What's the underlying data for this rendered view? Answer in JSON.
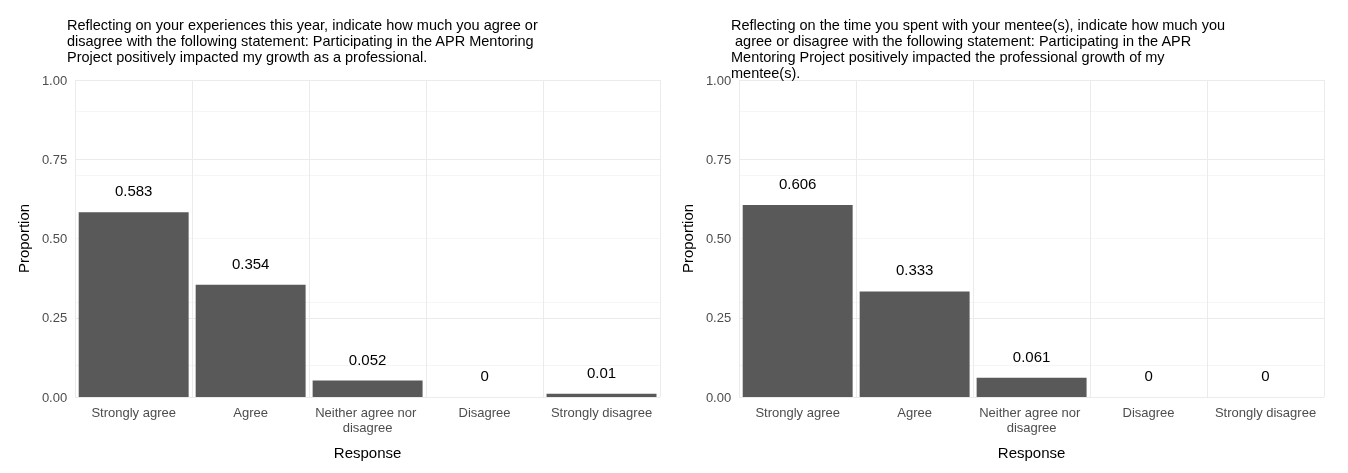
{
  "chart_data": [
    {
      "type": "bar",
      "title": "Reflecting on your experiences this year, indicate how much you agree or disagree with the following statement: Participating in the APR Mentoring Project positively impacted my growth as a professional.",
      "xlabel": "Response",
      "ylabel": "Proportion",
      "categories": [
        "Strongly agree",
        "Agree",
        "Neither agree nor disagree",
        "Disagree",
        "Strongly disagree"
      ],
      "values": [
        0.583,
        0.354,
        0.052,
        0,
        0.01
      ],
      "color": "#595959",
      "data_labels": true,
      "ylim": [
        0,
        1
      ],
      "yticks": [
        {
          "value": 0,
          "label": "0.00"
        },
        {
          "value": 0.25,
          "label": "0.25"
        },
        {
          "value": 0.5,
          "label": "0.50"
        },
        {
          "value": 0.75,
          "label": "0.75"
        },
        {
          "value": 1,
          "label": "1.00"
        }
      ],
      "grid": true
    },
    {
      "type": "bar",
      "title": "Reflecting on the time you spent with your mentee(s), indicate how much you agree or disagree with the following statement: Participating in the APR Mentoring Project positively impacted the professional growth of my mentee(s).",
      "xlabel": "Response",
      "ylabel": "Proportion",
      "categories": [
        "Strongly agree",
        "Agree",
        "Neither agree nor disagree",
        "Disagree",
        "Strongly disagree"
      ],
      "values": [
        0.606,
        0.333,
        0.061,
        0,
        0
      ],
      "color": "#595959",
      "data_labels": true,
      "ylim": [
        0,
        1
      ],
      "yticks": [
        {
          "value": 0,
          "label": "0.00"
        },
        {
          "value": 0.25,
          "label": "0.25"
        },
        {
          "value": 0.5,
          "label": "0.50"
        },
        {
          "value": 0.75,
          "label": "0.75"
        },
        {
          "value": 1,
          "label": "1.00"
        }
      ],
      "grid": true
    }
  ]
}
